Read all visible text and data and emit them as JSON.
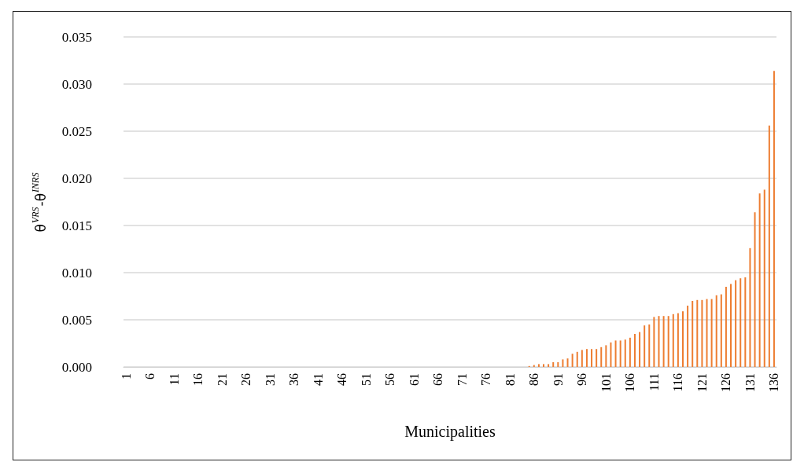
{
  "chart_data": {
    "type": "bar",
    "xlabel": "Municipalities",
    "ylabel": "θ$^{VRS}$-θ$^{INRS}$",
    "categories": [
      "1",
      null,
      null,
      null,
      null,
      "6",
      null,
      null,
      null,
      null,
      "11",
      null,
      null,
      null,
      null,
      "16",
      null,
      null,
      null,
      null,
      "21",
      null,
      null,
      null,
      null,
      "26",
      null,
      null,
      null,
      null,
      "31",
      null,
      null,
      null,
      null,
      "36",
      null,
      null,
      null,
      null,
      "41",
      null,
      null,
      null,
      null,
      "46",
      null,
      null,
      null,
      null,
      "51",
      null,
      null,
      null,
      null,
      "56",
      null,
      null,
      null,
      null,
      "61",
      null,
      null,
      null,
      null,
      "66",
      null,
      null,
      null,
      null,
      "71",
      null,
      null,
      null,
      null,
      "76",
      null,
      null,
      null,
      null,
      "81",
      null,
      null,
      null,
      null,
      "86",
      null,
      null,
      null,
      null,
      "91",
      null,
      null,
      null,
      null,
      "96",
      null,
      null,
      null,
      null,
      "101",
      null,
      null,
      null,
      null,
      "106",
      null,
      null,
      null,
      null,
      "111",
      null,
      null,
      null,
      null,
      "116",
      null,
      null,
      null,
      null,
      "121",
      null,
      null,
      null,
      null,
      "126",
      null,
      null,
      null,
      null,
      "131",
      null,
      null,
      null,
      null,
      "136"
    ],
    "values": [
      0,
      0,
      0,
      0,
      0,
      0,
      0,
      0,
      0,
      0,
      0,
      0,
      0,
      0,
      0,
      0,
      0,
      0,
      0,
      0,
      0,
      0,
      0,
      0,
      0,
      0,
      0,
      0,
      0,
      0,
      0,
      0,
      0,
      0,
      0,
      0,
      0,
      0,
      0,
      0,
      0,
      0,
      0,
      0,
      0,
      0,
      0,
      0,
      0,
      0,
      0,
      0,
      0,
      0,
      0,
      0,
      0,
      0,
      0,
      0,
      0,
      0,
      0,
      0,
      0,
      0,
      0,
      0,
      0,
      0,
      0,
      0,
      0,
      0,
      0,
      0,
      0,
      0,
      0,
      0,
      0,
      0,
      0,
      0,
      0.0001,
      0.0002,
      0.0003,
      0.0003,
      0.0003,
      0.0005,
      0.0005,
      0.0008,
      0.0009,
      0.0014,
      0.0016,
      0.0018,
      0.0019,
      0.0019,
      0.0019,
      0.0021,
      0.0023,
      0.0026,
      0.0028,
      0.0028,
      0.0029,
      0.0031,
      0.0035,
      0.0037,
      0.0044,
      0.0045,
      0.0053,
      0.0054,
      0.0054,
      0.0054,
      0.0056,
      0.0057,
      0.0059,
      0.0065,
      0.007,
      0.0071,
      0.0071,
      0.0072,
      0.0072,
      0.0076,
      0.0077,
      0.0085,
      0.0088,
      0.0092,
      0.0094,
      0.0095,
      0.0126,
      0.0164,
      0.0184,
      0.0188,
      0.0256,
      0.0314
    ],
    "color": "#ed7d31",
    "ylim": [
      0,
      0.035
    ],
    "yticks": [
      {
        "value": 0,
        "label": "0.000"
      },
      {
        "value": 0.005,
        "label": "0.005"
      },
      {
        "value": 0.01,
        "label": "0.010"
      },
      {
        "value": 0.015,
        "label": "0.015"
      },
      {
        "value": 0.02,
        "label": "0.020"
      },
      {
        "value": 0.025,
        "label": "0.025"
      },
      {
        "value": 0.03,
        "label": "0.030"
      },
      {
        "value": 0.035,
        "label": "0.035"
      }
    ],
    "grid": "y"
  }
}
